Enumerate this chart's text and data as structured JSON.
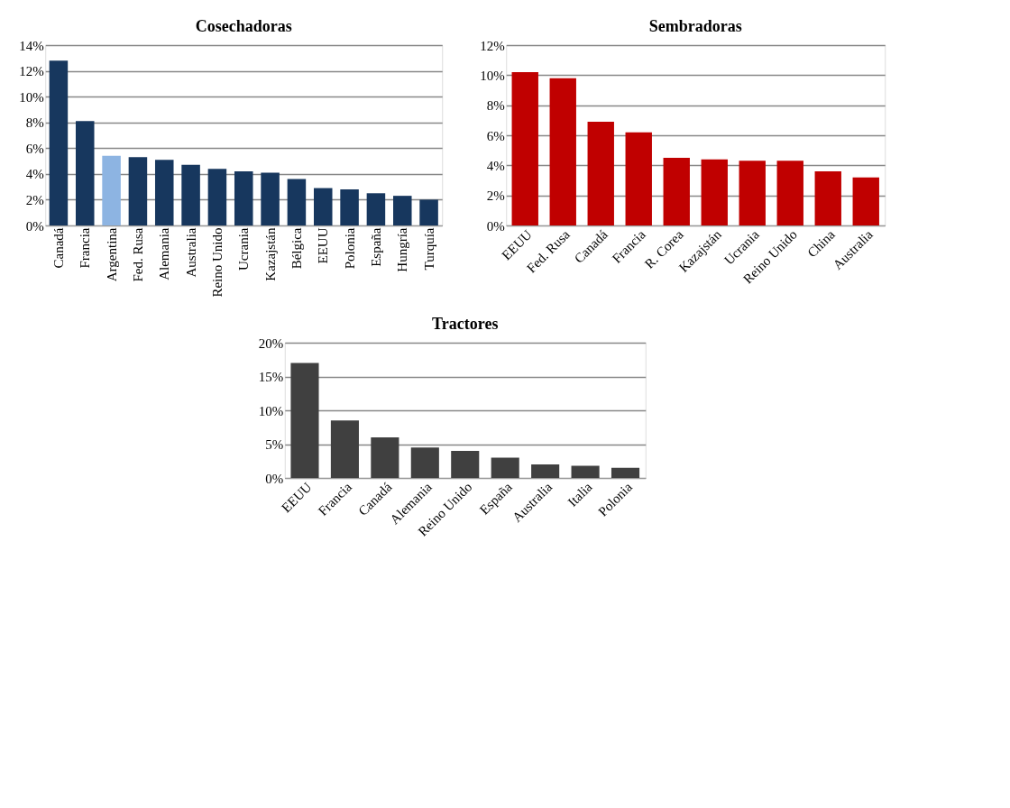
{
  "chart_data": [
    {
      "type": "bar",
      "title": "Cosechadoras",
      "categories": [
        "Canadá",
        "Francia",
        "Argentina",
        "Fed. Rusa",
        "Alemania",
        "Australia",
        "Reino Unido",
        "Ucrania",
        "Kazajstán",
        "Bélgica",
        "EEUU",
        "Polonia",
        "España",
        "Hungría",
        "Turquía"
      ],
      "values": [
        12.8,
        8.1,
        5.4,
        5.3,
        5.1,
        4.7,
        4.4,
        4.2,
        4.1,
        3.6,
        2.9,
        2.8,
        2.5,
        2.3,
        2.0
      ],
      "colors": [
        "#17375e",
        "#17375e",
        "#8db4e2",
        "#17375e",
        "#17375e",
        "#17375e",
        "#17375e",
        "#17375e",
        "#17375e",
        "#17375e",
        "#17375e",
        "#17375e",
        "#17375e",
        "#17375e",
        "#17375e"
      ],
      "ylim": [
        0,
        14
      ],
      "yticks": [
        {
          "value": 0,
          "label": "0%"
        },
        {
          "value": 2,
          "label": "2%"
        },
        {
          "value": 4,
          "label": "4%"
        },
        {
          "value": 6,
          "label": "6%"
        },
        {
          "value": 8,
          "label": "8%"
        },
        {
          "value": 10,
          "label": "10%"
        },
        {
          "value": 12,
          "label": "12%"
        },
        {
          "value": 14,
          "label": "14%"
        }
      ],
      "grid": "y"
    },
    {
      "type": "bar",
      "title": "Sembradoras",
      "categories": [
        "EEUU",
        "Fed. Rusa",
        "Canadá",
        "Francia",
        "R. Corea",
        "Kazajstán",
        "Ucrania",
        "Reino Unido",
        "China",
        "Australia"
      ],
      "values": [
        10.2,
        9.8,
        6.9,
        6.2,
        4.5,
        4.4,
        4.3,
        4.3,
        3.6,
        3.2
      ],
      "color": "#c00000",
      "ylim": [
        0,
        12
      ],
      "yticks": [
        {
          "value": 0,
          "label": "0%"
        },
        {
          "value": 2,
          "label": "2%"
        },
        {
          "value": 4,
          "label": "4%"
        },
        {
          "value": 6,
          "label": "6%"
        },
        {
          "value": 8,
          "label": "8%"
        },
        {
          "value": 10,
          "label": "10%"
        },
        {
          "value": 12,
          "label": "12%"
        }
      ],
      "grid": "y"
    },
    {
      "type": "bar",
      "title": "Tractores",
      "categories": [
        "EEUU",
        "Francia",
        "Canadá",
        "Alemania",
        "Reino Unido",
        "España",
        "Australia",
        "Italia",
        "Polonia"
      ],
      "values": [
        17,
        8.5,
        6,
        4.5,
        4,
        3,
        2,
        1.8,
        1.5
      ],
      "color": "#404040",
      "ylim": [
        0,
        20
      ],
      "yticks": [
        {
          "value": 0,
          "label": "0%"
        },
        {
          "value": 5,
          "label": "5%"
        },
        {
          "value": 10,
          "label": "10%"
        },
        {
          "value": 15,
          "label": "15%"
        },
        {
          "value": 20,
          "label": "20%"
        }
      ],
      "grid": "y"
    }
  ]
}
